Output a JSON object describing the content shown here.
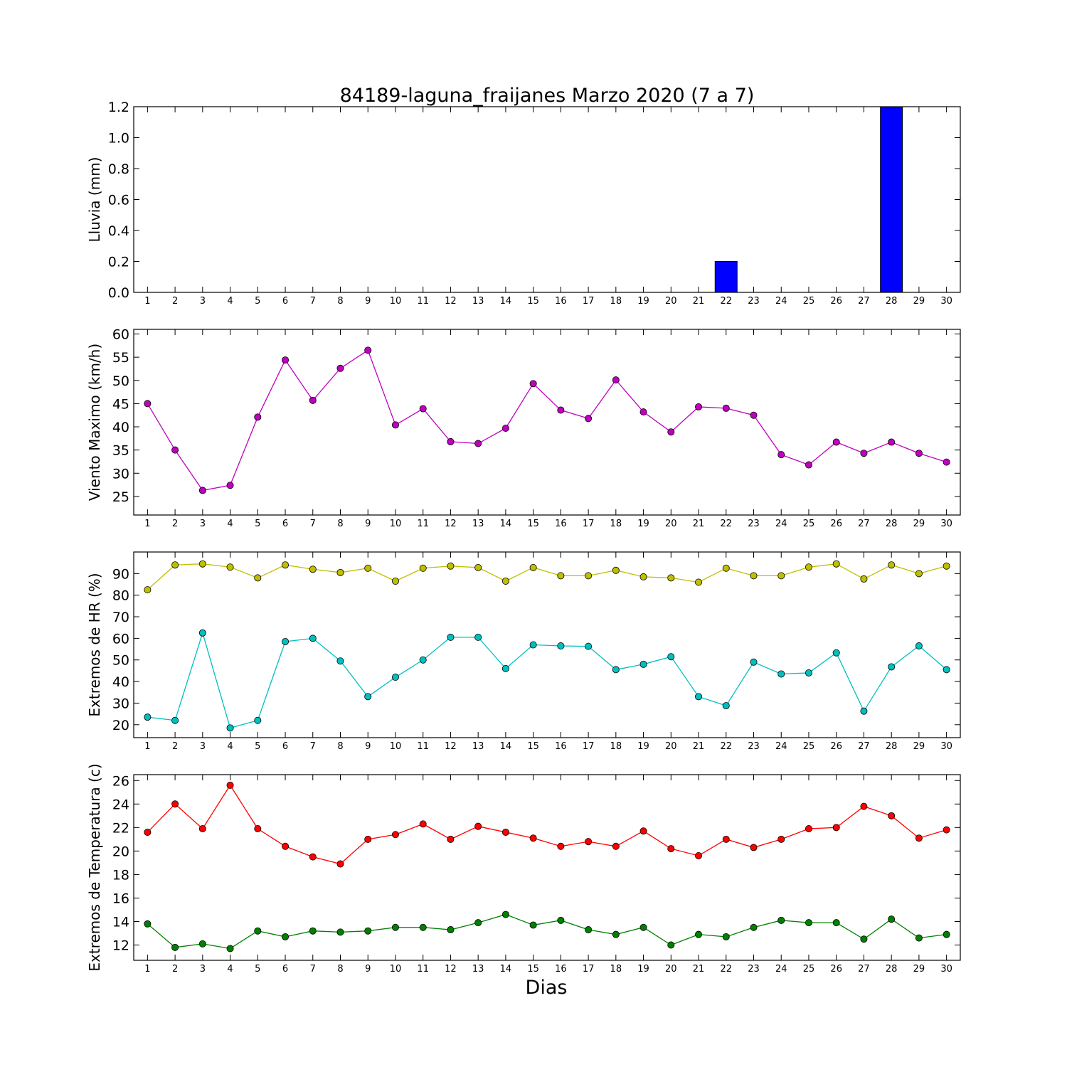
{
  "figure": {
    "title": "84189-laguna_fraijanes Marzo 2020  (7 a 7)",
    "xlabel": "Dias"
  },
  "chart_data": [
    {
      "type": "bar",
      "ylabel": "Lluvia (mm)",
      "ylim": [
        0,
        1.2
      ],
      "yticks": [
        "0.0",
        "0.2",
        "0.4",
        "0.6",
        "0.8",
        "1.0",
        "1.2"
      ],
      "categories": [
        1,
        2,
        3,
        4,
        5,
        6,
        7,
        8,
        9,
        10,
        11,
        12,
        13,
        14,
        15,
        16,
        17,
        18,
        19,
        20,
        21,
        22,
        23,
        24,
        25,
        26,
        27,
        28,
        29,
        30
      ],
      "series": [
        {
          "color": "#0000ff",
          "values": [
            0,
            0,
            0,
            0,
            0,
            0,
            0,
            0,
            0,
            0,
            0,
            0,
            0,
            0,
            0,
            0,
            0,
            0,
            0,
            0,
            0,
            0.2,
            0,
            0,
            0,
            0,
            0,
            1.2,
            0,
            0
          ]
        }
      ]
    },
    {
      "type": "line",
      "ylabel": "Viento Maximo (km/h)",
      "ylim": [
        21,
        61
      ],
      "yticks": [
        "25",
        "30",
        "35",
        "40",
        "45",
        "50",
        "55",
        "60"
      ],
      "x": [
        1,
        2,
        3,
        4,
        5,
        6,
        7,
        8,
        9,
        10,
        11,
        12,
        13,
        14,
        15,
        16,
        17,
        18,
        19,
        20,
        21,
        22,
        23,
        24,
        25,
        26,
        27,
        28,
        29,
        30
      ],
      "series": [
        {
          "color": "#bf00bf",
          "values": [
            45.0,
            35.0,
            26.3,
            27.4,
            42.1,
            54.4,
            45.7,
            52.6,
            56.5,
            40.4,
            43.9,
            36.8,
            36.4,
            39.7,
            49.3,
            43.6,
            41.8,
            50.1,
            43.2,
            38.9,
            44.3,
            44.0,
            42.5,
            34.0,
            31.8,
            36.7,
            34.3,
            36.7,
            34.3,
            32.4
          ]
        }
      ]
    },
    {
      "type": "line",
      "ylabel": "Extremos de HR (%)",
      "ylim": [
        14,
        100
      ],
      "yticks": [
        "20",
        "30",
        "40",
        "50",
        "60",
        "70",
        "80",
        "90"
      ],
      "x": [
        1,
        2,
        3,
        4,
        5,
        6,
        7,
        8,
        9,
        10,
        11,
        12,
        13,
        14,
        15,
        16,
        17,
        18,
        19,
        20,
        21,
        22,
        23,
        24,
        25,
        26,
        27,
        28,
        29,
        30
      ],
      "series": [
        {
          "color": "#bfbf00",
          "values": [
            82.5,
            94.0,
            94.5,
            93.0,
            88.0,
            94.0,
            92.0,
            90.5,
            92.5,
            86.5,
            92.5,
            93.5,
            92.8,
            86.5,
            92.8,
            89.0,
            89.0,
            91.5,
            88.5,
            88.0,
            86.0,
            92.5,
            89.0,
            89.0,
            93.0,
            94.5,
            87.5,
            94.0,
            90.0,
            93.5
          ]
        },
        {
          "color": "#00bfbf",
          "values": [
            23.5,
            22.0,
            62.5,
            18.5,
            22.0,
            58.5,
            60.0,
            49.5,
            33.0,
            42.0,
            50.0,
            60.5,
            60.5,
            46.0,
            57.0,
            56.5,
            56.3,
            45.5,
            48.0,
            51.5,
            33.0,
            28.8,
            49.0,
            43.5,
            44.0,
            53.3,
            26.3,
            46.8,
            56.5,
            45.5
          ]
        }
      ]
    },
    {
      "type": "line",
      "ylabel": "Extremos de Temperatura (c)",
      "ylim": [
        10.7,
        26.5
      ],
      "yticks": [
        "12",
        "14",
        "16",
        "18",
        "20",
        "22",
        "24",
        "26"
      ],
      "x": [
        1,
        2,
        3,
        4,
        5,
        6,
        7,
        8,
        9,
        10,
        11,
        12,
        13,
        14,
        15,
        16,
        17,
        18,
        19,
        20,
        21,
        22,
        23,
        24,
        25,
        26,
        27,
        28,
        29,
        30
      ],
      "series": [
        {
          "color": "#ff0000",
          "values": [
            21.6,
            24.0,
            21.9,
            25.6,
            21.9,
            20.4,
            19.5,
            18.9,
            21.0,
            21.4,
            22.3,
            21.0,
            22.1,
            21.6,
            21.1,
            20.4,
            20.8,
            20.4,
            21.7,
            20.2,
            19.6,
            21.0,
            20.3,
            21.0,
            21.9,
            22.0,
            23.8,
            23.0,
            21.1,
            21.8
          ]
        },
        {
          "color": "#008000",
          "values": [
            13.8,
            11.8,
            12.1,
            11.7,
            13.2,
            12.7,
            13.2,
            13.1,
            13.2,
            13.5,
            13.5,
            13.3,
            13.9,
            14.6,
            13.7,
            14.1,
            13.3,
            12.9,
            13.5,
            12.0,
            12.9,
            12.7,
            13.5,
            14.1,
            13.9,
            13.9,
            12.5,
            14.2,
            12.6,
            12.9
          ]
        }
      ]
    }
  ]
}
